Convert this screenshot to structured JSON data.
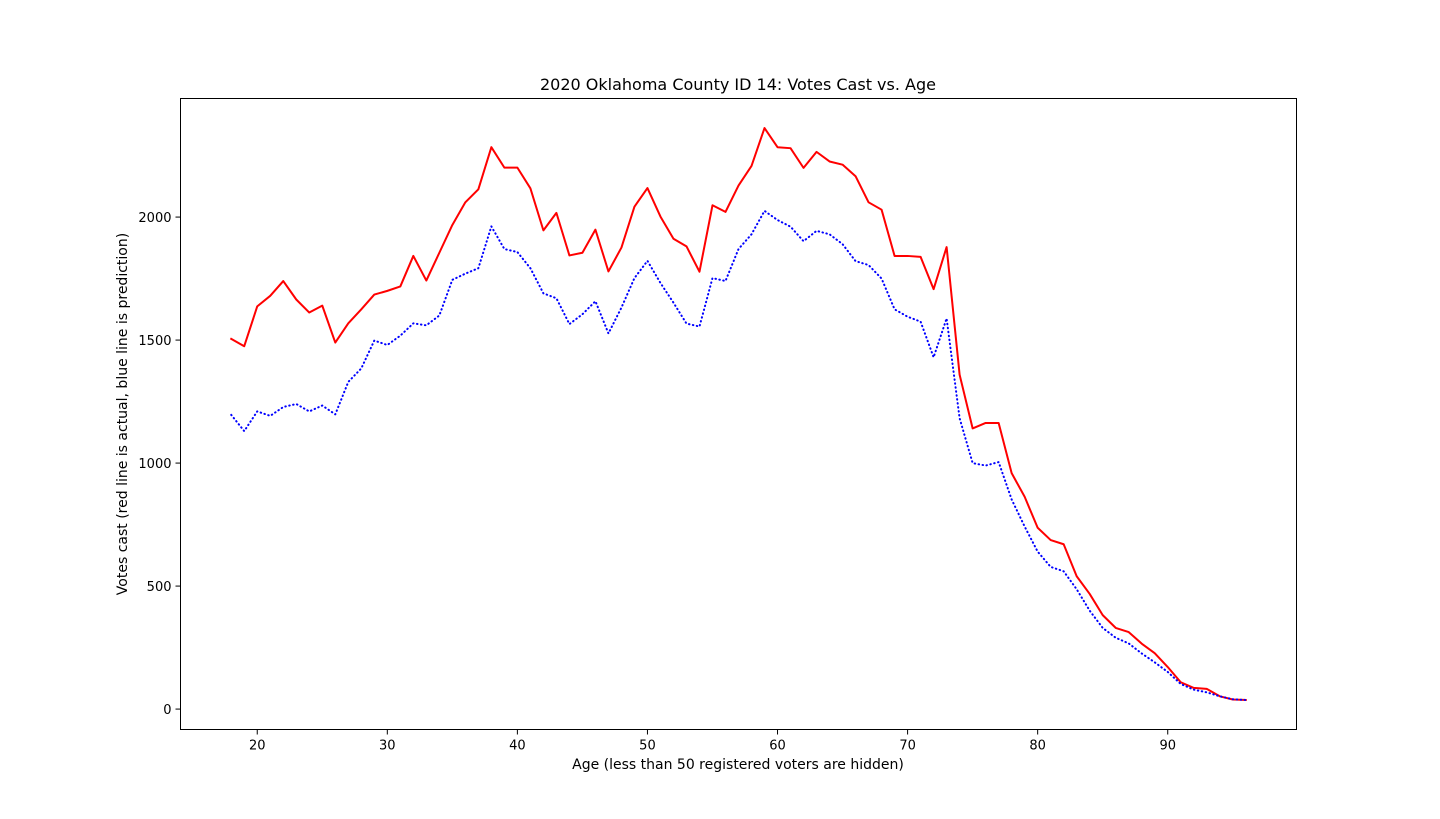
{
  "chart_data": {
    "type": "line",
    "title": "2020 Oklahoma County ID 14: Votes Cast vs. Age",
    "xlabel": "Age (less than 50 registered voters are hidden)",
    "ylabel": "Votes cast (red line is actual, blue line is prediction)",
    "xlim": [
      14.1,
      99.9
    ],
    "ylim": [
      -83,
      2482
    ],
    "xticks": [
      20,
      30,
      40,
      50,
      60,
      70,
      80,
      90
    ],
    "yticks": [
      0,
      500,
      1000,
      1500,
      2000
    ],
    "grid": false,
    "legend": "none",
    "x": [
      18,
      19,
      20,
      21,
      22,
      23,
      24,
      25,
      26,
      27,
      28,
      29,
      30,
      31,
      32,
      33,
      34,
      35,
      36,
      37,
      38,
      39,
      40,
      41,
      42,
      43,
      44,
      45,
      46,
      47,
      48,
      49,
      50,
      51,
      52,
      53,
      54,
      55,
      56,
      57,
      58,
      59,
      60,
      61,
      62,
      63,
      64,
      65,
      66,
      67,
      68,
      69,
      70,
      71,
      72,
      73,
      74,
      75,
      76,
      77,
      78,
      79,
      80,
      81,
      82,
      83,
      84,
      85,
      86,
      87,
      88,
      89,
      90,
      91,
      92,
      93,
      94,
      95,
      96
    ],
    "series": [
      {
        "color": "#ff0000",
        "style": "solid",
        "values": [
          1505,
          1475,
          1637,
          1680,
          1740,
          1665,
          1612,
          1640,
          1490,
          1568,
          1625,
          1685,
          1700,
          1718,
          1842,
          1742,
          1855,
          1968,
          2060,
          2113,
          2284,
          2201,
          2201,
          2117,
          1946,
          2017,
          1844,
          1855,
          1949,
          1779,
          1876,
          2042,
          2118,
          2002,
          1912,
          1881,
          1778,
          2048,
          2021,
          2128,
          2208,
          2362,
          2284,
          2280,
          2200,
          2265,
          2226,
          2213,
          2166,
          2060,
          2030,
          1842,
          1842,
          1838,
          1707,
          1878,
          1359,
          1141,
          1163,
          1163,
          959,
          863,
          737,
          687,
          670,
          540,
          468,
          382,
          330,
          313,
          266,
          227,
          171,
          109,
          86,
          82,
          52,
          39,
          37
        ]
      },
      {
        "color": "#0000ff",
        "style": "dotted",
        "values": [
          1196,
          1130,
          1210,
          1192,
          1228,
          1240,
          1210,
          1234,
          1198,
          1330,
          1385,
          1498,
          1480,
          1518,
          1568,
          1560,
          1600,
          1745,
          1770,
          1792,
          1962,
          1870,
          1858,
          1792,
          1690,
          1670,
          1565,
          1605,
          1658,
          1527,
          1632,
          1752,
          1822,
          1732,
          1652,
          1567,
          1555,
          1752,
          1740,
          1870,
          1930,
          2025,
          1988,
          1961,
          1902,
          1944,
          1930,
          1890,
          1821,
          1805,
          1750,
          1625,
          1595,
          1575,
          1430,
          1588,
          1182,
          1000,
          990,
          1004,
          852,
          742,
          640,
          578,
          560,
          487,
          400,
          330,
          290,
          267,
          226,
          190,
          151,
          102,
          79,
          68,
          52,
          40,
          37
        ]
      }
    ]
  }
}
